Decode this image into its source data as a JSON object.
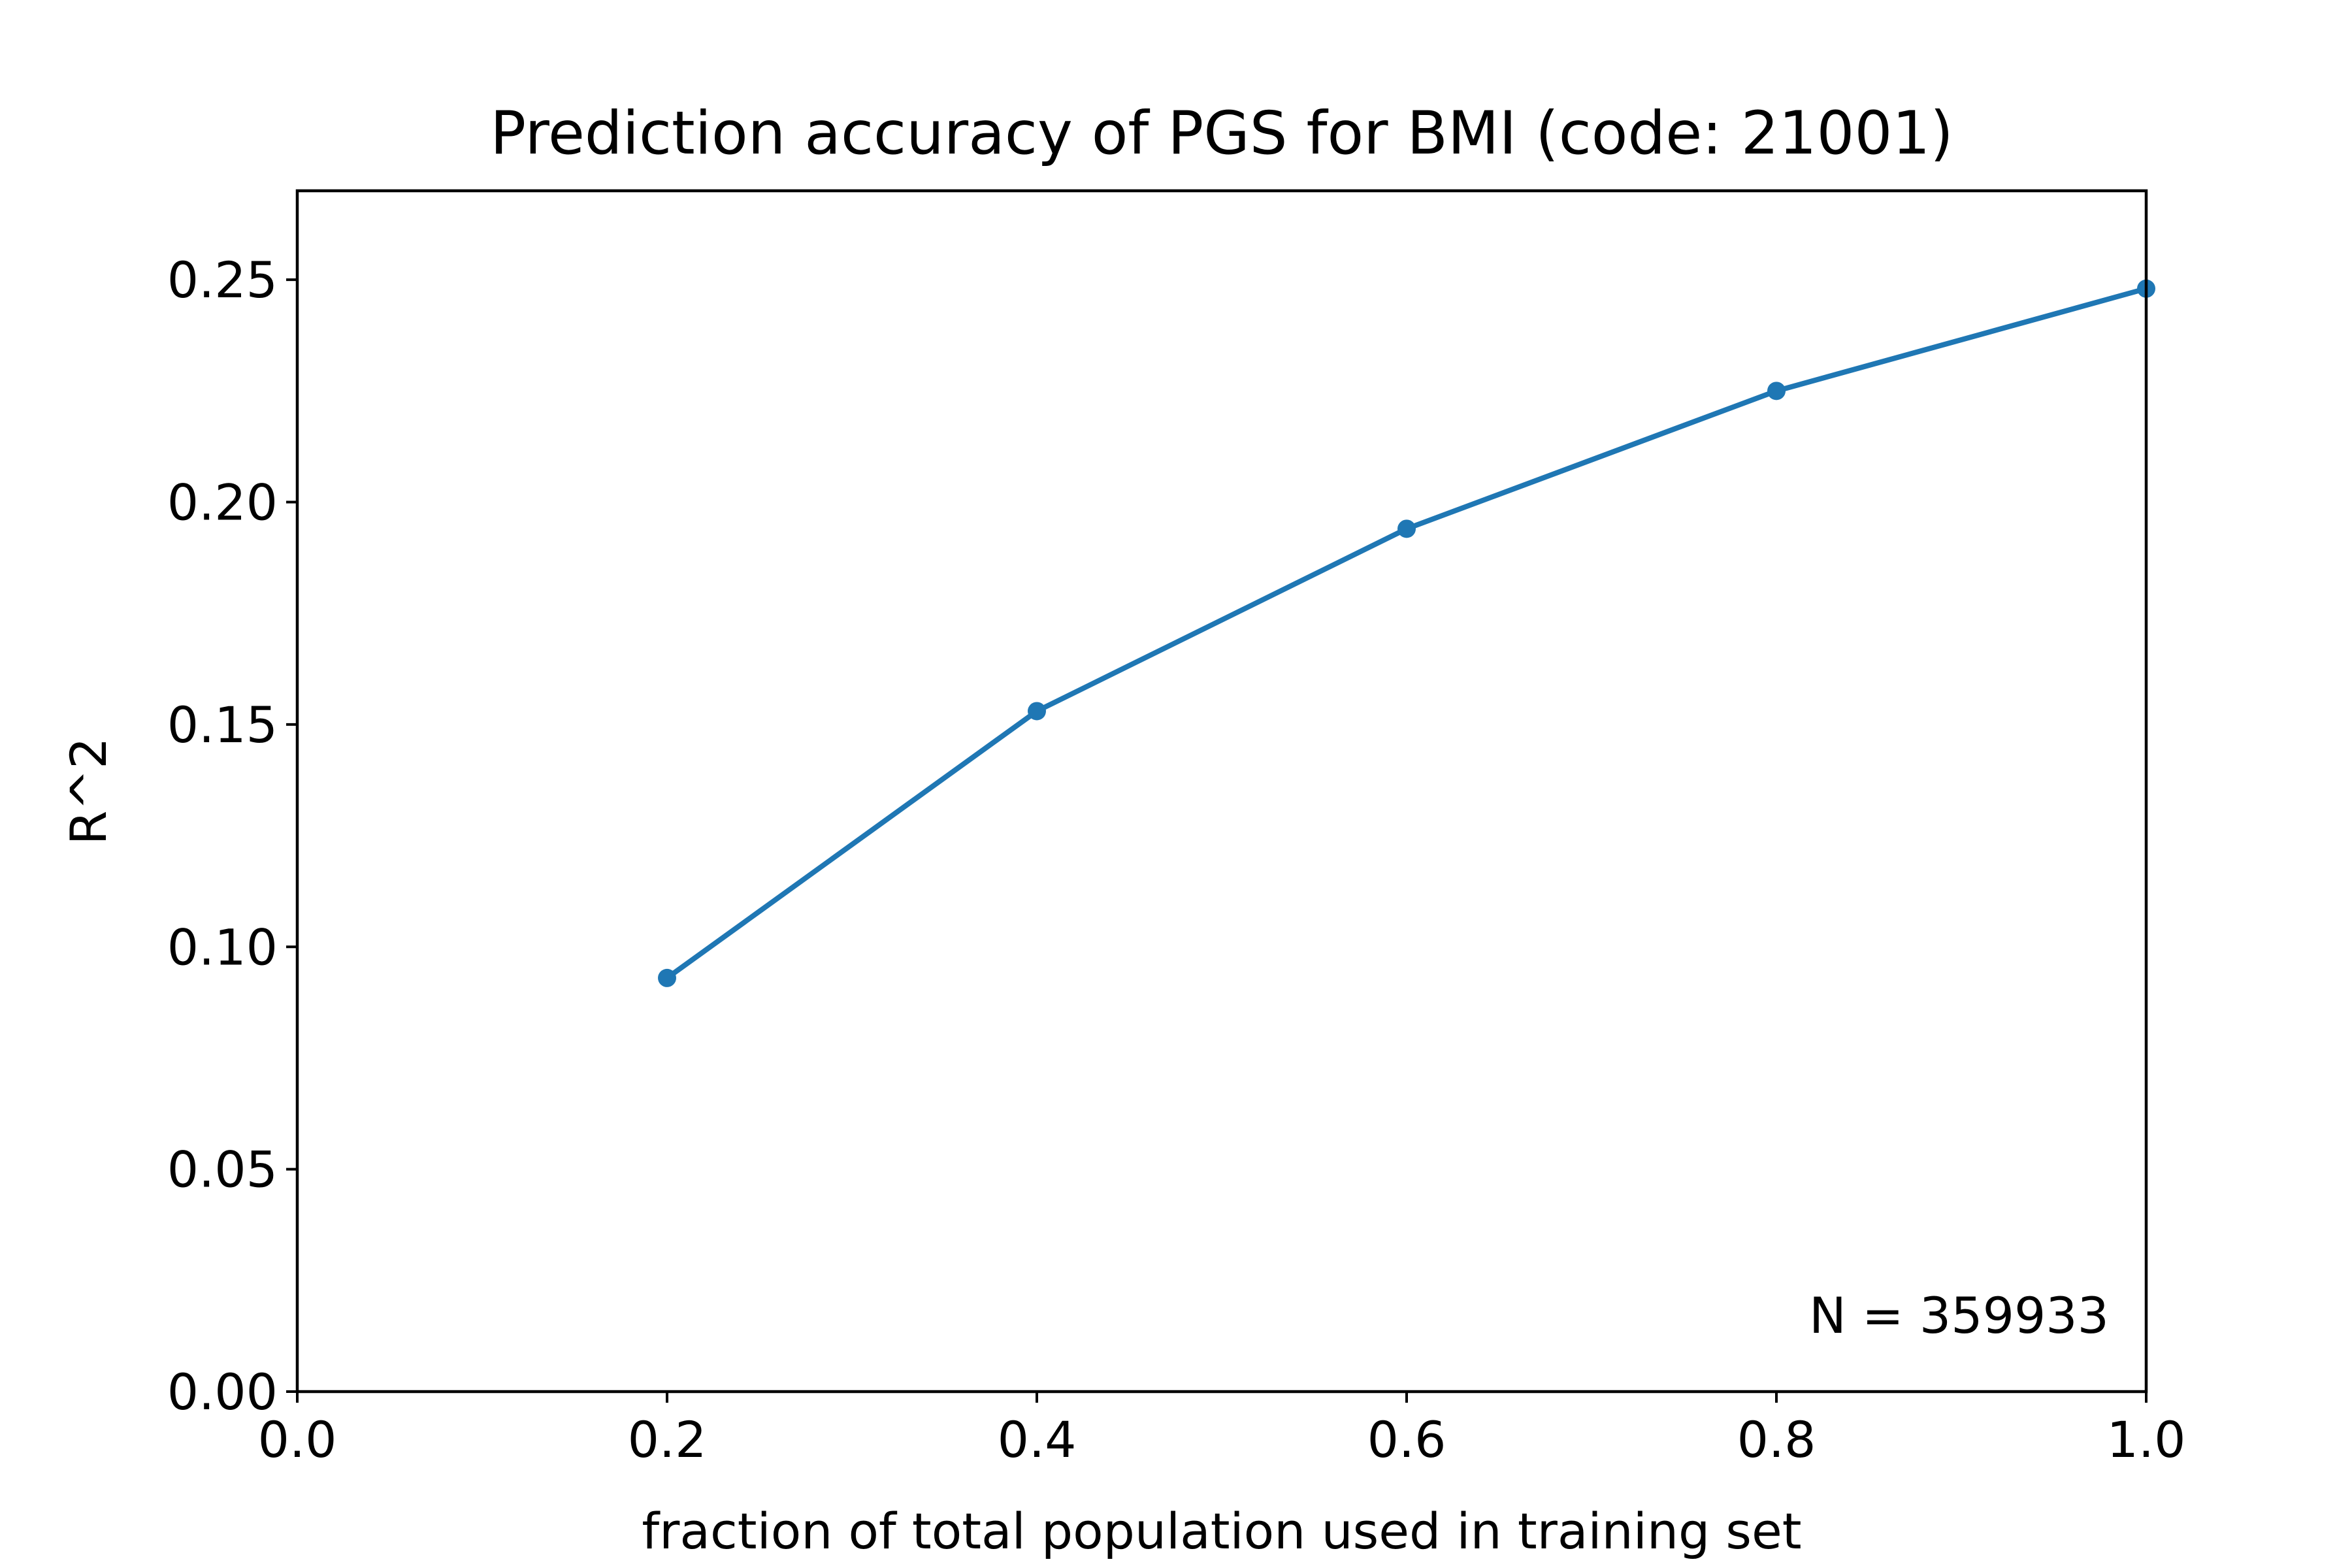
{
  "chart_data": {
    "type": "line",
    "title": "Prediction accuracy of PGS for BMI (code: 21001)",
    "xlabel": "fraction of total population used in training set",
    "ylabel": "R^2",
    "xlim": [
      0.0,
      1.0
    ],
    "ylim": [
      0.0,
      0.27
    ],
    "x_ticks": [
      "0.0",
      "0.2",
      "0.4",
      "0.6",
      "0.8",
      "1.0"
    ],
    "y_ticks": [
      "0.00",
      "0.05",
      "0.10",
      "0.15",
      "0.20",
      "0.25"
    ],
    "grid": false,
    "series": [
      {
        "x": [
          0.2,
          0.4,
          0.6,
          0.8,
          1.0
        ],
        "y": [
          0.093,
          0.153,
          0.194,
          0.225,
          0.248
        ],
        "color": "#1f77b4",
        "marker": "circle"
      }
    ],
    "annotation": "N = 359933"
  }
}
